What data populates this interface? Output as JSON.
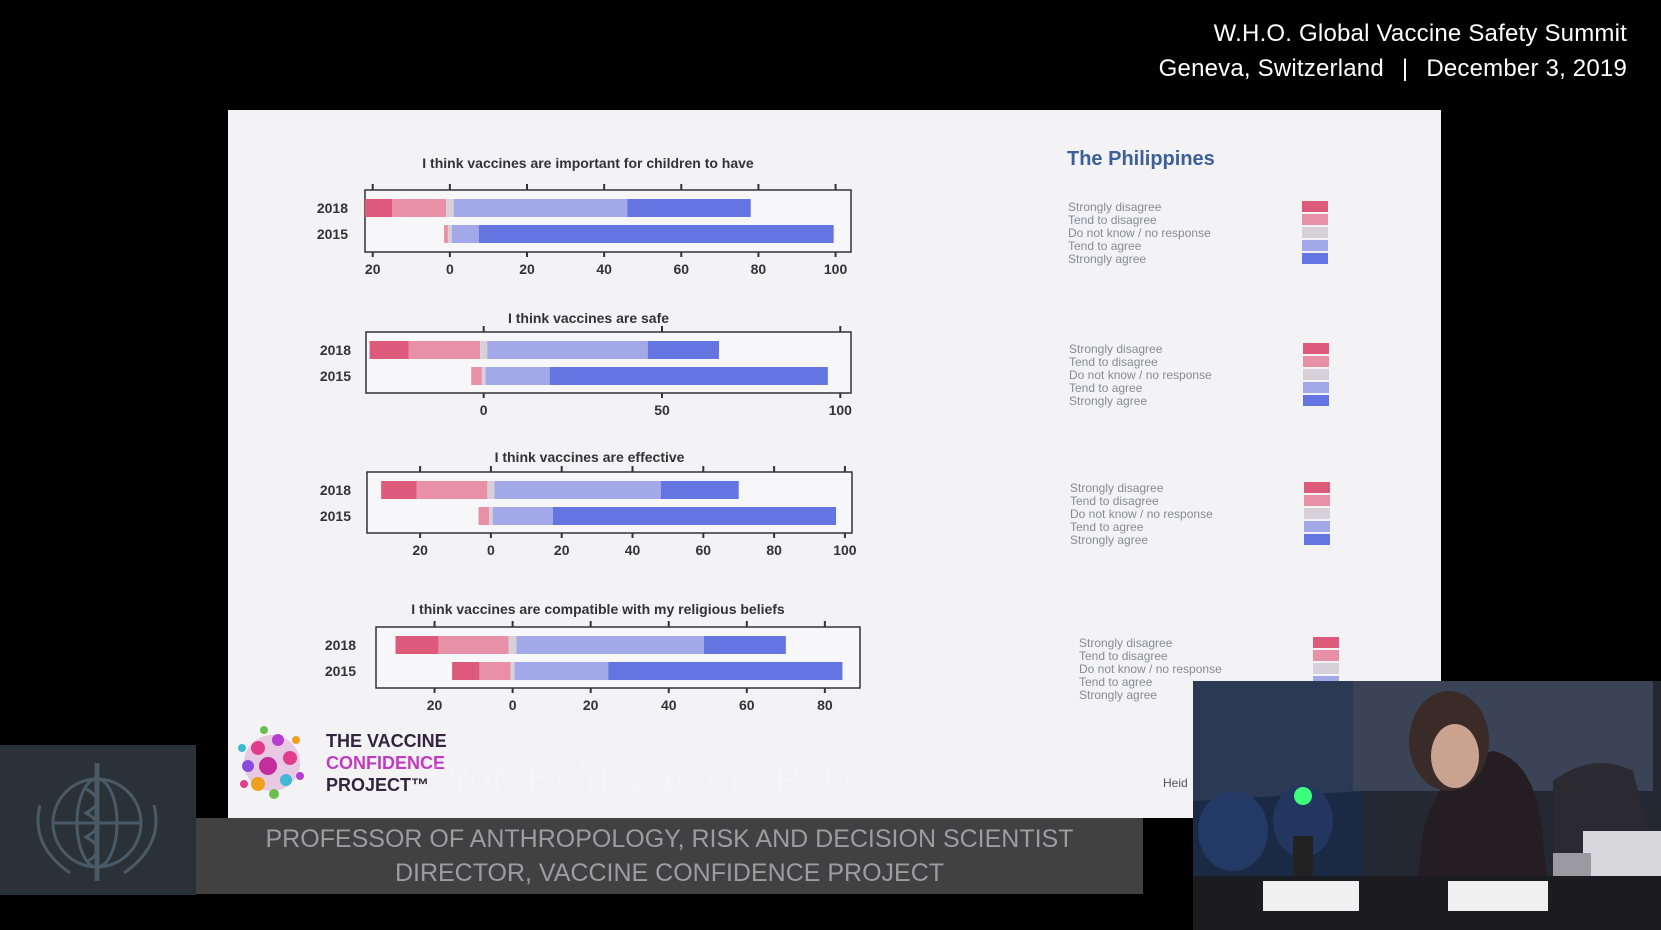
{
  "event": {
    "line1": "W.H.O. Global Vaccine Safety Summit",
    "location": "Geneva, Switzerland",
    "separator": "|",
    "date": "December 3, 2019"
  },
  "slide": {
    "country": "The Philippines",
    "partial_text": "Heid"
  },
  "colors": {
    "strongly_disagree": "#dd5a7a",
    "tend_to_disagree": "#e891a6",
    "no_response": "#d8d0d8",
    "tend_to_agree": "#a3a8e8",
    "strongly_agree": "#6474e0",
    "country_title": "#3d5f9a",
    "lower_third": "#464648"
  },
  "legend_labels": [
    "Strongly disagree",
    "Tend to disagree",
    "Do not know / no response",
    "Tend to agree",
    "Strongly agree"
  ],
  "chart_data": [
    {
      "type": "bar",
      "title": "I think vaccines are important for children to have",
      "categories": [
        "2018",
        "2015"
      ],
      "xlim": [
        -22,
        104
      ],
      "xticks": [
        -20,
        0,
        20,
        40,
        60,
        80,
        100
      ],
      "xticklabels": [
        "20",
        "0",
        "20",
        "40",
        "60",
        "80",
        "100"
      ],
      "series": [
        {
          "name": "Strongly disagree",
          "values": [
            7,
            0
          ]
        },
        {
          "name": "Tend to disagree",
          "values": [
            14,
            1
          ]
        },
        {
          "name": "Do not know / no response",
          "values": [
            2,
            1
          ]
        },
        {
          "name": "Tend to agree",
          "values": [
            45,
            7
          ]
        },
        {
          "name": "Strongly agree",
          "values": [
            32,
            92
          ]
        }
      ]
    },
    {
      "type": "bar",
      "title": "I think vaccines are safe",
      "categories": [
        "2018",
        "2015"
      ],
      "xlim": [
        -33,
        103
      ],
      "xticks": [
        0,
        50,
        100
      ],
      "xticklabels": [
        "0",
        "50",
        "100"
      ],
      "series": [
        {
          "name": "Strongly disagree",
          "values": [
            11,
            0
          ]
        },
        {
          "name": "Tend to disagree",
          "values": [
            20,
            3
          ]
        },
        {
          "name": "Do not know / no response",
          "values": [
            2,
            1
          ]
        },
        {
          "name": "Tend to agree",
          "values": [
            45,
            18
          ]
        },
        {
          "name": "Strongly agree",
          "values": [
            20,
            78
          ]
        }
      ]
    },
    {
      "type": "bar",
      "title": "I think vaccines are effective",
      "categories": [
        "2018",
        "2015"
      ],
      "xlim": [
        -35,
        102
      ],
      "xticks": [
        -20,
        0,
        20,
        40,
        60,
        80,
        100
      ],
      "xticklabels": [
        "20",
        "0",
        "20",
        "40",
        "60",
        "80",
        "100"
      ],
      "series": [
        {
          "name": "Strongly disagree",
          "values": [
            10,
            0
          ]
        },
        {
          "name": "Tend to disagree",
          "values": [
            20,
            3
          ]
        },
        {
          "name": "Do not know / no response",
          "values": [
            2,
            1
          ]
        },
        {
          "name": "Tend to agree",
          "values": [
            47,
            17
          ]
        },
        {
          "name": "Strongly agree",
          "values": [
            22,
            80
          ]
        }
      ]
    },
    {
      "type": "bar",
      "title": "I think vaccines are compatible with my religious beliefs",
      "categories": [
        "2018",
        "2015"
      ],
      "xlim": [
        -35,
        89
      ],
      "xticks": [
        -20,
        0,
        20,
        40,
        60,
        80
      ],
      "xticklabels": [
        "20",
        "0",
        "20",
        "40",
        "60",
        "80"
      ],
      "series": [
        {
          "name": "Strongly disagree",
          "values": [
            11,
            7
          ]
        },
        {
          "name": "Tend to disagree",
          "values": [
            18,
            8
          ]
        },
        {
          "name": "Do not know / no response",
          "values": [
            2,
            1
          ]
        },
        {
          "name": "Tend to agree",
          "values": [
            48,
            24
          ]
        },
        {
          "name": "Strongly agree",
          "values": [
            21,
            60
          ]
        }
      ]
    }
  ],
  "branding": {
    "logo_line1": "THE VACCINE",
    "logo_line2": "CONFIDENCE",
    "logo_line3": "PROJECT™"
  },
  "lower_third": {
    "name": "Prof. Heidi Larson, PhD",
    "title_line1": "PROFESSOR OF ANTHROPOLOGY, RISK AND DECISION SCIENTIST",
    "title_line2": "DIRECTOR, VACCINE CONFIDENCE PROJECT"
  }
}
